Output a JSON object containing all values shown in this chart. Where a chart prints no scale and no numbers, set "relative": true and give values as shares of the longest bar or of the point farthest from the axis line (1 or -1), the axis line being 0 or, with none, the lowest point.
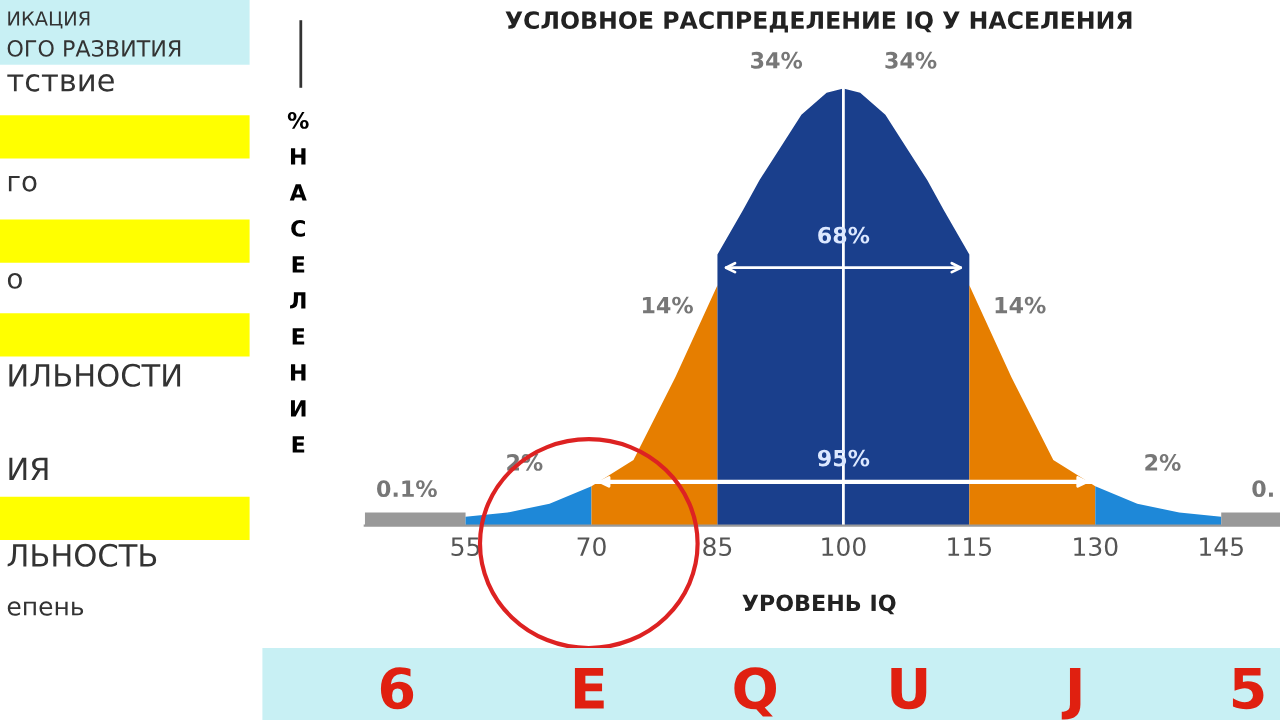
{
  "chart_data": {
    "type": "area",
    "title": "УСЛОВНОЕ РАСПРЕДЕЛЕНИЕ IQ У НАСЕЛЕНИЯ",
    "xlabel": "УРОВЕНЬ IQ",
    "ylabel": "% НАСЕЛЕНИЕ",
    "relative": true,
    "xlim": [
      43,
      152
    ],
    "xticks": [
      55,
      70,
      85,
      100,
      115,
      130,
      145
    ],
    "grid": false,
    "series": [
      {
        "color": "#999999",
        "x": [
          43,
          55
        ],
        "values": [
          0.03,
          0.03
        ]
      },
      {
        "color": "#1e88d8",
        "x": [
          55,
          60,
          65,
          70
        ],
        "values": [
          0.02,
          0.03,
          0.05,
          0.09
        ]
      },
      {
        "color": "#e67e00",
        "x": [
          70,
          75,
          80,
          85
        ],
        "values": [
          0.09,
          0.15,
          0.34,
          0.55
        ]
      },
      {
        "color": "#1a3f8c",
        "x": [
          85,
          88,
          90,
          93,
          95,
          98,
          100,
          102,
          105,
          107,
          110,
          112,
          115
        ],
        "values": [
          0.62,
          0.72,
          0.79,
          0.88,
          0.94,
          0.99,
          1.0,
          0.99,
          0.94,
          0.88,
          0.79,
          0.72,
          0.62
        ]
      },
      {
        "color": "#e67e00",
        "x": [
          115,
          120,
          125,
          130
        ],
        "values": [
          0.55,
          0.34,
          0.15,
          0.09
        ]
      },
      {
        "color": "#1e88d8",
        "x": [
          130,
          135,
          140,
          145
        ],
        "values": [
          0.09,
          0.05,
          0.03,
          0.02
        ]
      },
      {
        "color": "#999999",
        "x": [
          145,
          152
        ],
        "values": [
          0.03,
          0.03
        ]
      },
      {
        "type": "line",
        "color": "#ffffff",
        "x": [
          70,
          130
        ],
        "values": [
          0.1,
          0.1
        ]
      }
    ],
    "ref_lines": [
      {
        "axis": "x",
        "value": 100,
        "color": "#ffffff"
      }
    ],
    "annotations": [
      "34%",
      "34%",
      "68%",
      "14%",
      "14%",
      "95%",
      "2%",
      "2%",
      "0.1%",
      "0.",
      "ИКАЦИЯ",
      "ОГО РАЗВИТИЯ",
      "тствие",
      "го",
      "о",
      "ИЛЬНОСТИ",
      "ИЯ",
      "ЛЬНОСТЬ",
      "епень",
      "6",
      "E",
      "Q",
      "U",
      "J",
      "5"
    ]
  }
}
